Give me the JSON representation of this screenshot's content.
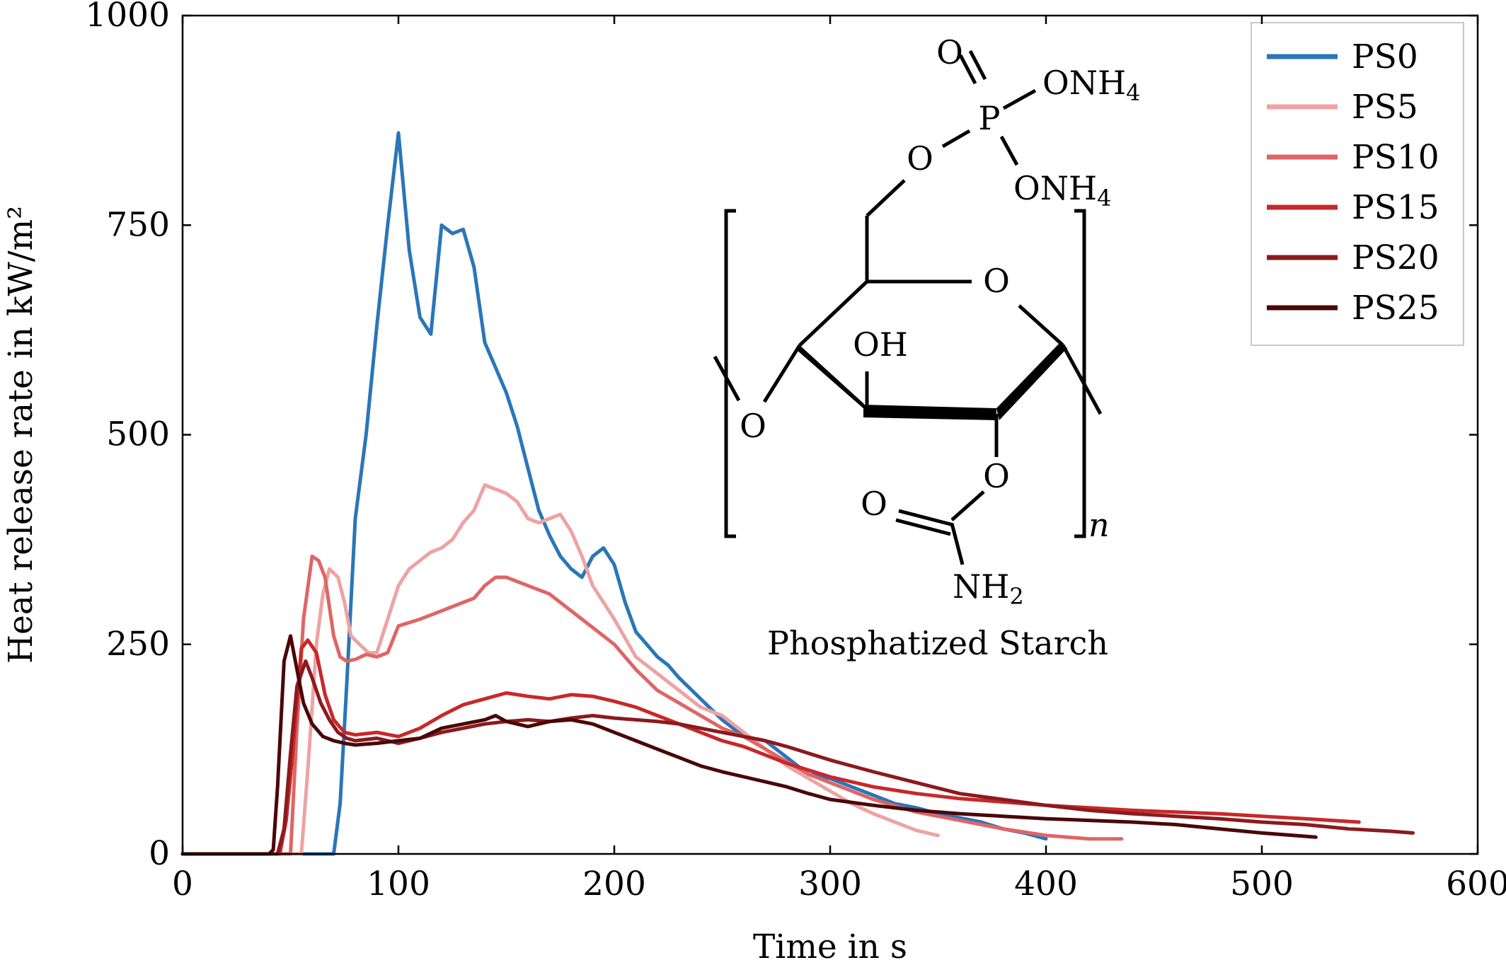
{
  "chart_data": {
    "type": "line",
    "xlabel": "Time in s",
    "ylabel": "Heat release rate in kW/m²",
    "xlim": [
      0,
      600
    ],
    "ylim": [
      0,
      1000
    ],
    "xticks": [
      0,
      100,
      200,
      300,
      400,
      500,
      600
    ],
    "yticks": [
      0,
      250,
      500,
      750,
      1000
    ],
    "xtick_labels": [
      "0",
      "100",
      "200",
      "300",
      "400",
      "500",
      "600"
    ],
    "ytick_labels": [
      "0",
      "250",
      "500",
      "750",
      "1000"
    ],
    "grid": false,
    "legend_position": "top-right",
    "series": [
      {
        "name": "PS0",
        "color": "#2a76b8",
        "x": [
          0,
          20,
          40,
          50,
          60,
          65,
          68,
          70,
          73,
          76,
          80,
          85,
          90,
          95,
          100,
          105,
          110,
          115,
          120,
          125,
          130,
          135,
          140,
          145,
          150,
          155,
          160,
          165,
          170,
          175,
          180,
          185,
          190,
          195,
          200,
          205,
          210,
          215,
          220,
          225,
          230,
          240,
          250,
          260,
          270,
          280,
          290,
          300,
          310,
          320,
          330,
          340,
          350,
          360,
          370,
          380,
          390,
          400
        ],
        "y": [
          0,
          0,
          0,
          0,
          0,
          0,
          0,
          0,
          60,
          200,
          400,
          500,
          630,
          750,
          860,
          720,
          640,
          620,
          750,
          740,
          745,
          700,
          610,
          580,
          550,
          510,
          460,
          410,
          380,
          355,
          340,
          330,
          355,
          365,
          345,
          300,
          265,
          250,
          235,
          225,
          210,
          185,
          160,
          140,
          135,
          115,
          95,
          90,
          80,
          70,
          60,
          55,
          48,
          43,
          38,
          30,
          25,
          18
        ]
      },
      {
        "name": "PS5",
        "color": "#eda3a3",
        "x": [
          0,
          20,
          40,
          50,
          55,
          58,
          62,
          65,
          68,
          72,
          75,
          78,
          82,
          86,
          90,
          95,
          100,
          105,
          110,
          115,
          120,
          125,
          130,
          135,
          140,
          145,
          150,
          155,
          160,
          165,
          170,
          175,
          180,
          185,
          190,
          195,
          200,
          210,
          220,
          230,
          240,
          250,
          260,
          270,
          280,
          290,
          300,
          310,
          320,
          330,
          340,
          350
        ],
        "y": [
          0,
          0,
          0,
          0,
          0,
          100,
          250,
          310,
          340,
          330,
          300,
          260,
          250,
          240,
          240,
          280,
          320,
          340,
          350,
          360,
          365,
          375,
          395,
          410,
          440,
          435,
          430,
          420,
          400,
          395,
          400,
          405,
          385,
          355,
          320,
          300,
          280,
          235,
          215,
          195,
          175,
          165,
          145,
          125,
          105,
          90,
          75,
          60,
          48,
          38,
          28,
          22
        ]
      },
      {
        "name": "PS10",
        "color": "#de6666",
        "x": [
          0,
          20,
          40,
          50,
          53,
          56,
          60,
          63,
          66,
          70,
          73,
          76,
          80,
          85,
          90,
          95,
          100,
          110,
          120,
          130,
          135,
          140,
          145,
          150,
          160,
          170,
          180,
          190,
          200,
          210,
          220,
          230,
          240,
          250,
          260,
          270,
          280,
          290,
          300,
          310,
          320,
          340,
          360,
          380,
          400,
          420,
          435
        ],
        "y": [
          0,
          0,
          0,
          0,
          150,
          280,
          355,
          350,
          330,
          260,
          235,
          230,
          232,
          238,
          235,
          240,
          272,
          280,
          290,
          300,
          305,
          320,
          330,
          330,
          320,
          310,
          290,
          270,
          250,
          220,
          195,
          180,
          165,
          150,
          140,
          125,
          110,
          95,
          85,
          75,
          65,
          50,
          40,
          30,
          22,
          18,
          18
        ]
      },
      {
        "name": "PS15",
        "color": "#c8282a",
        "x": [
          0,
          20,
          40,
          45,
          48,
          51,
          55,
          58,
          62,
          66,
          70,
          75,
          80,
          90,
          100,
          110,
          120,
          130,
          140,
          150,
          160,
          170,
          180,
          190,
          200,
          210,
          220,
          230,
          240,
          250,
          260,
          270,
          280,
          290,
          300,
          320,
          340,
          360,
          380,
          400,
          420,
          440,
          460,
          480,
          500,
          520,
          545
        ],
        "y": [
          0,
          0,
          0,
          0,
          40,
          120,
          245,
          255,
          240,
          190,
          160,
          145,
          142,
          145,
          140,
          150,
          165,
          178,
          185,
          192,
          188,
          185,
          190,
          188,
          182,
          175,
          165,
          155,
          145,
          135,
          128,
          118,
          108,
          100,
          92,
          80,
          72,
          66,
          62,
          58,
          55,
          52,
          50,
          48,
          45,
          42,
          38
        ]
      },
      {
        "name": "PS20",
        "color": "#8c1a1d",
        "x": [
          0,
          20,
          40,
          44,
          47,
          50,
          53,
          57,
          60,
          64,
          68,
          72,
          76,
          80,
          90,
          100,
          110,
          120,
          130,
          140,
          150,
          160,
          170,
          180,
          190,
          200,
          210,
          220,
          230,
          240,
          250,
          260,
          270,
          280,
          290,
          300,
          310,
          320,
          340,
          360,
          380,
          400,
          420,
          440,
          460,
          480,
          500,
          520,
          540,
          560,
          570
        ],
        "y": [
          0,
          0,
          0,
          0,
          30,
          120,
          200,
          230,
          210,
          180,
          160,
          145,
          138,
          135,
          138,
          132,
          138,
          145,
          150,
          155,
          158,
          160,
          158,
          162,
          165,
          162,
          160,
          158,
          155,
          150,
          145,
          140,
          135,
          128,
          120,
          112,
          105,
          98,
          85,
          72,
          65,
          58,
          52,
          48,
          45,
          42,
          38,
          35,
          30,
          27,
          25
        ]
      },
      {
        "name": "PS25",
        "color": "#4a0708",
        "x": [
          0,
          20,
          40,
          42,
          44,
          47,
          50,
          53,
          56,
          60,
          65,
          70,
          75,
          80,
          90,
          100,
          110,
          120,
          130,
          140,
          145,
          150,
          160,
          170,
          180,
          190,
          200,
          210,
          220,
          230,
          240,
          250,
          260,
          270,
          280,
          290,
          300,
          320,
          340,
          360,
          380,
          400,
          420,
          440,
          460,
          480,
          500,
          525
        ],
        "y": [
          0,
          0,
          0,
          5,
          80,
          230,
          260,
          220,
          180,
          155,
          140,
          135,
          132,
          130,
          132,
          135,
          138,
          150,
          155,
          160,
          165,
          158,
          152,
          158,
          160,
          155,
          145,
          135,
          125,
          115,
          105,
          98,
          92,
          86,
          80,
          72,
          65,
          58,
          52,
          48,
          45,
          42,
          40,
          38,
          35,
          30,
          25,
          20
        ]
      }
    ]
  },
  "inset": {
    "caption": "Phosphatized Starch",
    "atoms": {
      "o_top": "O",
      "p": "P",
      "onh4_1": "ONH",
      "onh4_1_sub": "4",
      "o_ester": "O",
      "onh4_2": "ONH",
      "onh4_2_sub": "4",
      "o_ring": "O",
      "oh": "OH",
      "o_left": "O",
      "o_carb": "O",
      "o_dbl": "O",
      "nh2": "NH",
      "nh2_sub": "2",
      "repeat": "n"
    }
  }
}
